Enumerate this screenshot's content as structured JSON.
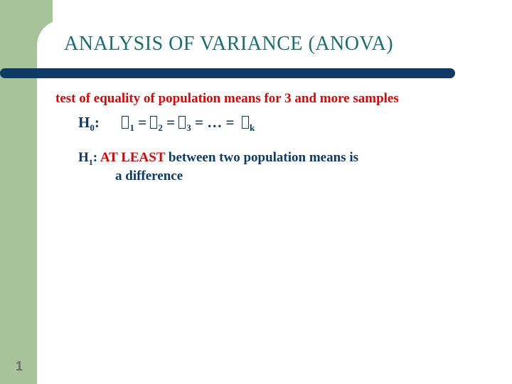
{
  "colors": {
    "left_band": "#a7c39a",
    "rule": "#0d3b66",
    "title": "#1a6e6e",
    "subtitle": "#e60000",
    "body": "#0d3b66",
    "atleast": "#e60000",
    "page_num": "#6a6a6a"
  },
  "title": "ANALYSIS OF VARIANCE (ANOVA)",
  "subtitle": "test of equality of population means for 3 and more samples",
  "h0_label": "H",
  "h0_sub": "0",
  "h0_colon": ":",
  "h0_eq": " = ",
  "h0_ell": " = … = ",
  "mu_subs": {
    "a": "1",
    "b": "2",
    "c": "3",
    "k": "k"
  },
  "h1_label": "H",
  "h1_sub": "1",
  "h1_colon": ": ",
  "h1_atleast": "AT LEAST",
  "h1_rest1": "  between two population means is",
  "h1_rest2": "a difference",
  "page_number": "1"
}
